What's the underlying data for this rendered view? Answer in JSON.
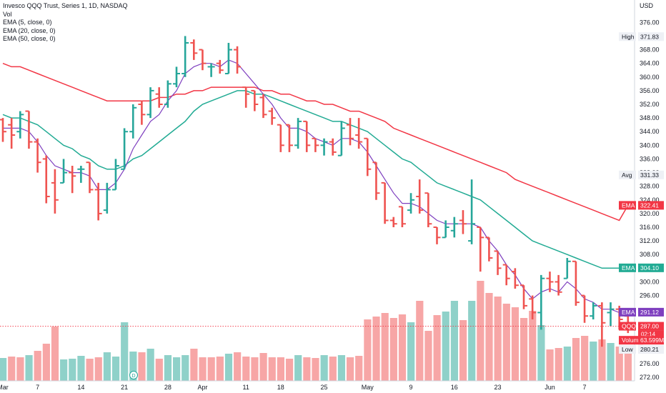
{
  "legend": {
    "title": "Invesco QQQ Trust, Series 1, 1D, NASDAQ",
    "vol": "Vol",
    "ema5": "EMA (5, close, 0)",
    "ema20": "EMA (20, close, 0)",
    "ema50": "EMA (50, close, 0)"
  },
  "axis": {
    "currency": "USD",
    "y_ticks": [
      376,
      372,
      368,
      364,
      360,
      356,
      352,
      348,
      344,
      340,
      336,
      332,
      328,
      324,
      320,
      316,
      312,
      308,
      304,
      300,
      296,
      292,
      288,
      284,
      280,
      276,
      272
    ],
    "y_tick_labels": [
      "376.00",
      "372.00",
      "368.00",
      "364.00",
      "360.00",
      "356.00",
      "352.00",
      "348.00",
      "344.00",
      "340.00",
      "336.00",
      "332.00",
      "328.00",
      "324.00",
      "320.00",
      "316.00",
      "312.00",
      "308.00",
      "304.00",
      "300.00",
      "296.00",
      "",
      "",
      "",
      "",
      "276.00",
      "272.00"
    ],
    "x_tick_labels": [
      {
        "label": "Mar",
        "bar": 0
      },
      {
        "label": "7",
        "bar": 4
      },
      {
        "label": "14",
        "bar": 9
      },
      {
        "label": "21",
        "bar": 14
      },
      {
        "label": "28",
        "bar": 19
      },
      {
        "label": "Apr",
        "bar": 23
      },
      {
        "label": "11",
        "bar": 28
      },
      {
        "label": "18",
        "bar": 32
      },
      {
        "label": "25",
        "bar": 37
      },
      {
        "label": "May",
        "bar": 42
      },
      {
        "label": "9",
        "bar": 47
      },
      {
        "label": "16",
        "bar": 52
      },
      {
        "label": "23",
        "bar": 57
      },
      {
        "label": "Jun",
        "bar": 63
      },
      {
        "label": "7",
        "bar": 67
      }
    ]
  },
  "price_labels": [
    {
      "tag": "High",
      "value": "371.83",
      "price": 371.83,
      "bg": "#eef0f5",
      "fg": "#131722"
    },
    {
      "tag": "Avg",
      "value": "331.33",
      "price": 331.33,
      "bg": "#eef0f5",
      "fg": "#131722"
    },
    {
      "tag": "EMA",
      "value": "322.41",
      "price": 322.41,
      "bg": "#f23645",
      "fg": "#ffffff"
    },
    {
      "tag": "EMA",
      "value": "304.10",
      "price": 304.1,
      "bg": "#22ab94",
      "fg": "#ffffff"
    },
    {
      "tag": "EMA",
      "value": "291.12",
      "price": 291.12,
      "bg": "#7e3fbf",
      "fg": "#ffffff"
    },
    {
      "tag": "QQQ",
      "value": "287.00",
      "price": 287.0,
      "bg": "#f23645",
      "fg": "#ffffff",
      "extra": "02:14"
    },
    {
      "tag": "Volume",
      "value": "63.599M",
      "price": 282.9,
      "bg": "#f23645",
      "fg": "#ffffff"
    },
    {
      "tag": "Low",
      "value": "280.21",
      "price": 280.21,
      "bg": "#eef0f5",
      "fg": "#131722"
    }
  ],
  "chart_data": {
    "type": "ohlc",
    "title": "Invesco QQQ Trust, Series 1, 1D, NASDAQ",
    "ylabel": "USD",
    "ylim": [
      271,
      379
    ],
    "grid": false,
    "legend_position": "top-left",
    "colors": {
      "up": "#26a69a",
      "down": "#ef5350",
      "ema5": "#7e3fbf",
      "ema20": "#22ab94",
      "ema50": "#f23645",
      "vol_up": "#8fd1c9",
      "vol_down": "#f7a6a6"
    },
    "bars": [
      {
        "o": 347.5,
        "h": 348,
        "l": 341,
        "c": 344
      },
      {
        "o": 346,
        "h": 348,
        "l": 339,
        "c": 343
      },
      {
        "o": 344,
        "h": 350,
        "l": 342,
        "c": 349
      },
      {
        "o": 350,
        "h": 350,
        "l": 339,
        "c": 341
      },
      {
        "o": 341,
        "h": 342,
        "l": 332,
        "c": 335
      },
      {
        "o": 336,
        "h": 337,
        "l": 323,
        "c": 325
      },
      {
        "o": 329,
        "h": 333,
        "l": 320,
        "c": 324
      },
      {
        "o": 329,
        "h": 336,
        "l": 329,
        "c": 332
      },
      {
        "o": 332,
        "h": 334,
        "l": 326,
        "c": 331
      },
      {
        "o": 333,
        "h": 334,
        "l": 329,
        "c": 333
      },
      {
        "o": 335,
        "h": 335,
        "l": 326,
        "c": 327
      },
      {
        "o": 327,
        "h": 329,
        "l": 318,
        "c": 320
      },
      {
        "o": 321,
        "h": 329,
        "l": 320,
        "c": 327
      },
      {
        "o": 327,
        "h": 336,
        "l": 327,
        "c": 334
      },
      {
        "o": 333,
        "h": 345,
        "l": 333,
        "c": 344
      },
      {
        "o": 344,
        "h": 352,
        "l": 342,
        "c": 351
      },
      {
        "o": 352,
        "h": 353,
        "l": 346,
        "c": 349
      },
      {
        "o": 349,
        "h": 357,
        "l": 348,
        "c": 356
      },
      {
        "o": 355,
        "h": 357,
        "l": 351,
        "c": 352
      },
      {
        "o": 352,
        "h": 359,
        "l": 351,
        "c": 358
      },
      {
        "o": 358,
        "h": 363,
        "l": 357,
        "c": 361
      },
      {
        "o": 361,
        "h": 372,
        "l": 360,
        "c": 370
      },
      {
        "o": 370,
        "h": 371,
        "l": 365,
        "c": 367
      },
      {
        "o": 368,
        "h": 368,
        "l": 362,
        "c": 364
      },
      {
        "o": 363,
        "h": 364,
        "l": 360,
        "c": 363
      },
      {
        "o": 364,
        "h": 365,
        "l": 361,
        "c": 362
      },
      {
        "o": 361,
        "h": 370,
        "l": 361,
        "c": 368
      },
      {
        "o": 368,
        "h": 369,
        "l": 361,
        "c": 363
      },
      {
        "o": 357,
        "h": 357,
        "l": 351,
        "c": 355
      },
      {
        "o": 356,
        "h": 356,
        "l": 350,
        "c": 352
      },
      {
        "o": 354,
        "h": 355,
        "l": 348,
        "c": 349
      },
      {
        "o": 350,
        "h": 351,
        "l": 346,
        "c": 348
      },
      {
        "o": 346,
        "h": 346,
        "l": 338,
        "c": 340
      },
      {
        "o": 346,
        "h": 346,
        "l": 338,
        "c": 340
      },
      {
        "o": 340,
        "h": 348,
        "l": 339,
        "c": 347
      },
      {
        "o": 347,
        "h": 347,
        "l": 338,
        "c": 340
      },
      {
        "o": 342,
        "h": 342,
        "l": 338,
        "c": 340
      },
      {
        "o": 340,
        "h": 342,
        "l": 337,
        "c": 341
      },
      {
        "o": 341,
        "h": 342,
        "l": 337,
        "c": 338
      },
      {
        "o": 337,
        "h": 347,
        "l": 337,
        "c": 345
      },
      {
        "o": 346,
        "h": 348,
        "l": 340,
        "c": 342
      },
      {
        "o": 343,
        "h": 348,
        "l": 339,
        "c": 341
      },
      {
        "o": 342,
        "h": 342,
        "l": 331,
        "c": 333
      },
      {
        "o": 335,
        "h": 335,
        "l": 324,
        "c": 326
      },
      {
        "o": 329,
        "h": 329,
        "l": 317,
        "c": 318
      },
      {
        "o": 318,
        "h": 319,
        "l": 316,
        "c": 317
      },
      {
        "o": 322,
        "h": 322,
        "l": 316,
        "c": 317
      },
      {
        "o": 321,
        "h": 326,
        "l": 320,
        "c": 324
      },
      {
        "o": 325,
        "h": 330,
        "l": 320,
        "c": 321
      },
      {
        "o": 326,
        "h": 326,
        "l": 316,
        "c": 317
      },
      {
        "o": 316,
        "h": 316,
        "l": 311,
        "c": 313
      },
      {
        "o": 313,
        "h": 318,
        "l": 313,
        "c": 316
      },
      {
        "o": 315,
        "h": 319,
        "l": 313,
        "c": 317
      },
      {
        "o": 318,
        "h": 321,
        "l": 314,
        "c": 317
      },
      {
        "o": 312,
        "h": 330,
        "l": 311,
        "c": 317
      },
      {
        "o": 316,
        "h": 316,
        "l": 303,
        "c": 313
      },
      {
        "o": 313,
        "h": 313,
        "l": 306,
        "c": 307
      },
      {
        "o": 309,
        "h": 309,
        "l": 302,
        "c": 304
      },
      {
        "o": 305,
        "h": 305,
        "l": 299,
        "c": 301
      },
      {
        "o": 303,
        "h": 304,
        "l": 298,
        "c": 299
      },
      {
        "o": 299,
        "h": 299,
        "l": 292,
        "c": 293
      },
      {
        "o": 295,
        "h": 296,
        "l": 289,
        "c": 291
      },
      {
        "o": 291,
        "h": 302,
        "l": 286,
        "c": 301
      },
      {
        "o": 301,
        "h": 303,
        "l": 297,
        "c": 300
      },
      {
        "o": 300,
        "h": 302,
        "l": 296,
        "c": 297
      },
      {
        "o": 301,
        "h": 307,
        "l": 301,
        "c": 306
      },
      {
        "o": 306,
        "h": 306,
        "l": 293,
        "c": 294
      },
      {
        "o": 296,
        "h": 296,
        "l": 288,
        "c": 290
      },
      {
        "o": 290,
        "h": 294,
        "l": 289,
        "c": 293
      },
      {
        "o": 293,
        "h": 294,
        "l": 281,
        "c": 288
      },
      {
        "o": 291,
        "h": 294,
        "l": 287,
        "c": 292
      },
      {
        "o": 292,
        "h": 293,
        "l": 286,
        "c": 289
      },
      {
        "o": 290,
        "h": 291,
        "l": 285,
        "c": 287
      }
    ],
    "volume_heights": [
      32,
      34,
      33,
      36,
      42,
      52,
      76,
      30,
      31,
      35,
      31,
      33,
      40,
      34,
      82,
      41,
      40,
      45,
      31,
      36,
      33,
      36,
      45,
      33,
      33,
      34,
      38,
      40,
      34,
      33,
      39,
      33,
      33,
      31,
      36,
      33,
      32,
      36,
      34,
      36,
      33,
      35,
      86,
      90,
      95,
      88,
      93,
      82,
      112,
      70,
      92,
      97,
      112,
      85,
      112,
      140,
      123,
      118,
      108,
      103,
      88,
      98,
      78,
      44,
      46,
      48,
      60,
      63,
      55,
      58,
      53,
      48,
      40
    ],
    "volume_up": [
      1,
      0,
      0,
      1,
      0,
      0,
      0,
      1,
      1,
      1,
      0,
      0,
      1,
      1,
      1,
      1,
      0,
      1,
      0,
      1,
      1,
      1,
      0,
      0,
      0,
      0,
      1,
      0,
      0,
      0,
      0,
      0,
      0,
      0,
      1,
      0,
      0,
      1,
      0,
      1,
      0,
      0,
      0,
      0,
      0,
      0,
      0,
      1,
      0,
      0,
      0,
      1,
      1,
      0,
      1,
      0,
      0,
      0,
      0,
      0,
      0,
      0,
      1,
      0,
      0,
      1,
      0,
      0,
      1,
      0,
      1,
      0,
      0
    ],
    "ema5": [
      345,
      345,
      345,
      344,
      341,
      337,
      334,
      333,
      332,
      332,
      331,
      327,
      327,
      329,
      333,
      339,
      343,
      347,
      349,
      353,
      356,
      361,
      363,
      364,
      364,
      363,
      365,
      364,
      361,
      358,
      355,
      352,
      348,
      345,
      345,
      344,
      342,
      341,
      340,
      342,
      342,
      341,
      338,
      334,
      330,
      326,
      323,
      323,
      322,
      320,
      318,
      317,
      317,
      317,
      317,
      316,
      312,
      309,
      305,
      302,
      298,
      295,
      297,
      298,
      297,
      300,
      298,
      295,
      294,
      292,
      292,
      291,
      291
    ],
    "ema20": [
      349,
      348,
      348,
      347,
      346,
      344,
      342,
      340,
      339,
      337,
      336,
      334,
      333,
      333,
      334,
      336,
      337,
      339,
      341,
      343,
      345,
      347,
      350,
      352,
      353,
      354,
      355,
      356,
      356,
      355,
      355,
      354,
      353,
      352,
      351,
      350,
      349,
      348,
      347,
      347,
      346,
      345,
      344,
      342,
      340,
      338,
      336,
      335,
      333,
      331,
      329,
      328,
      327,
      326,
      325,
      324,
      322,
      320,
      318,
      316,
      314,
      312,
      311,
      310,
      309,
      308,
      307,
      306,
      305,
      304,
      304,
      304,
      304
    ],
    "ema50": [
      364,
      363,
      363,
      362,
      361,
      360,
      359,
      358,
      357,
      356,
      355,
      354,
      353,
      353,
      353,
      353,
      353,
      353,
      354,
      354,
      355,
      355,
      356,
      356,
      357,
      357,
      357,
      357,
      357,
      357,
      356,
      356,
      355,
      355,
      354,
      353,
      353,
      352,
      352,
      351,
      350,
      350,
      349,
      348,
      347,
      345,
      344,
      343,
      342,
      341,
      340,
      339,
      338,
      337,
      336,
      335,
      334,
      333,
      332,
      330,
      329,
      328,
      327,
      326,
      325,
      324,
      323,
      322,
      321,
      320,
      319,
      318,
      322.41
    ]
  }
}
